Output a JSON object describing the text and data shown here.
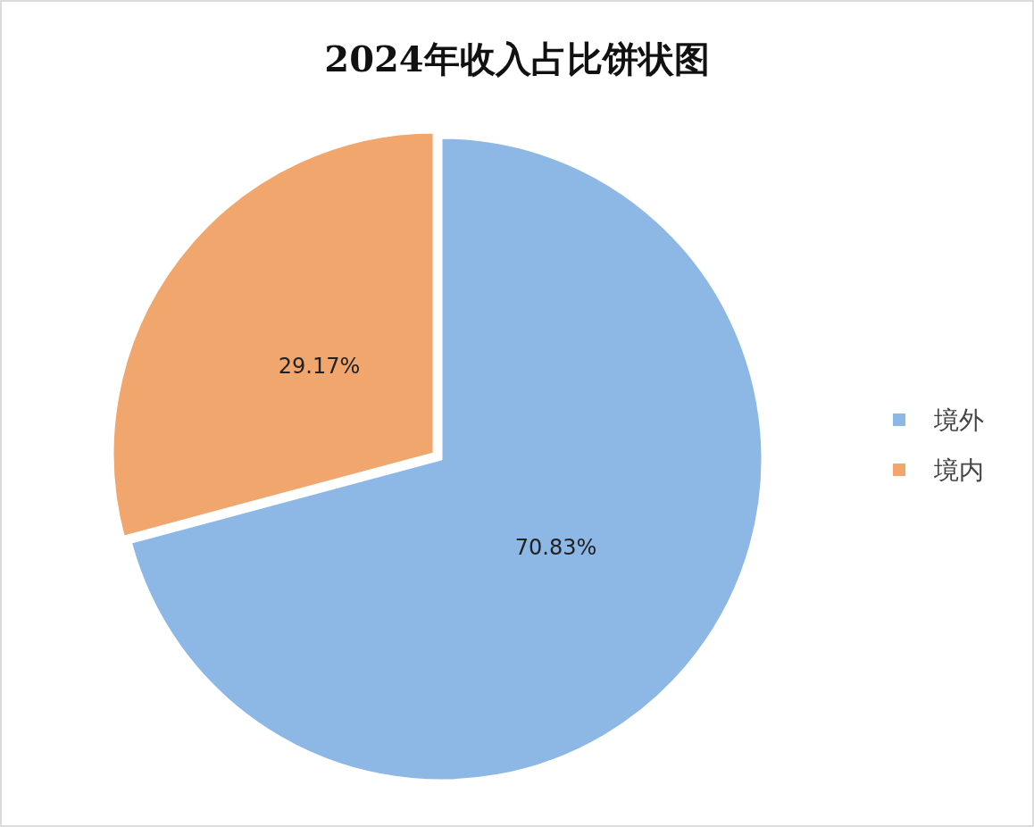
{
  "chart_data": {
    "type": "pie",
    "title": "2024年收入占比饼状图",
    "categories": [
      "境外",
      "境内"
    ],
    "values": [
      70.83,
      29.17
    ],
    "value_labels": [
      "70.83%",
      "29.17%"
    ],
    "colors": [
      "#8db8e6",
      "#f0a66c"
    ],
    "legend": "right"
  }
}
